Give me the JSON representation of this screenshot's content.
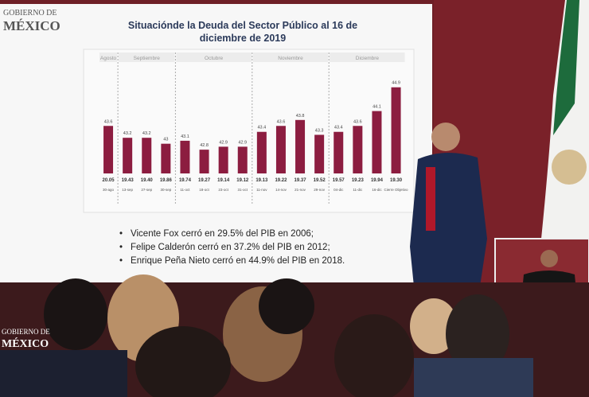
{
  "header": {
    "logo_line1": "GOBIERNO DE",
    "logo_line2": "MÉXICO"
  },
  "chart_data": {
    "type": "bar",
    "title": "Situaciónde la Deuda del Sector Público al 16 de diciembre de 2019",
    "months": [
      "Agosto",
      "Septiembre",
      "Octubre",
      "Noviembre",
      "Diciembre"
    ],
    "categories": [
      "30-ago",
      "13-sep",
      "27-sep",
      "30-sep",
      "11-oct",
      "18-oct",
      "23-oct",
      "31-oct",
      "11-nov",
      "14-nov",
      "21-nov",
      "29-nov",
      "04-dic",
      "11-dic",
      "16-dic",
      "Cierre Objetivo"
    ],
    "values": [
      43.6,
      43.2,
      43.2,
      43.0,
      43.1,
      42.8,
      42.9,
      42.9,
      43.4,
      43.6,
      43.8,
      43.3,
      43.4,
      43.6,
      44.1,
      44.9
    ],
    "rates": [
      "20.05",
      "19.43",
      "19.40",
      "19.86",
      "19.74",
      "19.27",
      "19.14",
      "19.12",
      "19.13",
      "19.22",
      "19.37",
      "19.52",
      "19.57",
      "19.23",
      "19.94",
      "19.30"
    ],
    "ylim": [
      42,
      45
    ],
    "color": "#8c1d40"
  },
  "bullets": [
    "Vicente Fox cerró en 29.5% del PIB en 2006;",
    "Felipe Calderón cerró en 37.2% del PIB en 2012;",
    "Enrique Peña Nieto cerró en 44.9% del PIB en 2018."
  ],
  "footer": {
    "logo_line1": "GOBIERNO DE",
    "logo_line2": "MÉXICO"
  }
}
